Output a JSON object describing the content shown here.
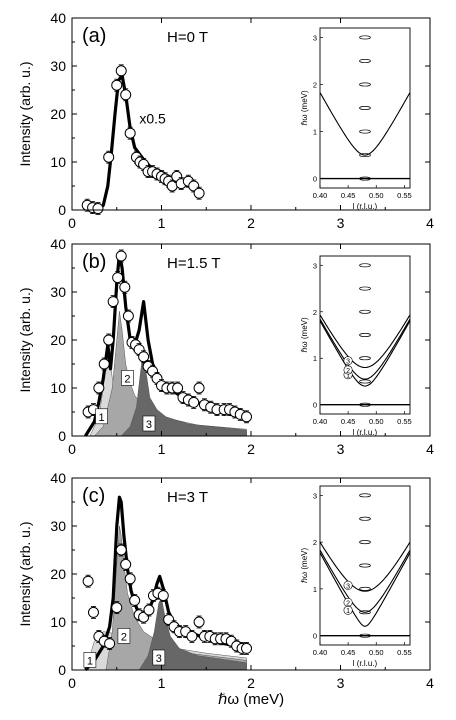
{
  "shared": {
    "xlabel": "ℏω (meV)",
    "ylabel": "Intensity (arb. u.)",
    "xlim": [
      0,
      4
    ],
    "ylim": [
      0,
      40
    ],
    "xticks": [
      0,
      1,
      2,
      3,
      4
    ],
    "yticks": [
      0,
      10,
      20,
      30,
      40
    ]
  },
  "chart_data": [
    {
      "type": "line",
      "panel": "(a)",
      "field": "H=0 T",
      "annotation": "x0.5",
      "points": {
        "x": [
          0.17,
          0.23,
          0.29,
          0.41,
          0.5,
          0.55,
          0.6,
          0.65,
          0.72,
          0.76,
          0.8,
          0.85,
          0.9,
          0.95,
          1.0,
          1.04,
          1.08,
          1.12,
          1.17,
          1.22,
          1.3,
          1.36,
          1.42
        ],
        "y": [
          1,
          0.5,
          0.3,
          11,
          26,
          29,
          24,
          16,
          11,
          10,
          9.5,
          8,
          8,
          7.5,
          7,
          6.5,
          6,
          5,
          7,
          5.5,
          6,
          5,
          3.5
        ]
      },
      "fit": {
        "x": [
          0.3,
          0.35,
          0.4,
          0.44,
          0.48,
          0.52,
          0.56,
          0.6,
          0.65,
          0.7,
          0.8,
          0.9,
          1.0,
          1.1,
          1.2,
          1.3,
          1.42
        ],
        "y": [
          0,
          1,
          5,
          12,
          20,
          27,
          28,
          24,
          17,
          13,
          10.5,
          8.5,
          7.4,
          6.5,
          5.7,
          5,
          3.8
        ]
      },
      "inset": {
        "xlabel": "l (r.l.u.)",
        "ylabel": "ℏω (meV)",
        "xlim": [
          0.4,
          0.56
        ],
        "ylim": [
          -0.2,
          3.2
        ],
        "xticks": [
          0.4,
          0.45,
          0.5,
          0.55
        ],
        "yticks": [
          0,
          1,
          2,
          3
        ],
        "center": 0.48,
        "gaps": [
          0.5
        ],
        "branch_labels": [],
        "ellipses_y": [
          0,
          0.5,
          1.0,
          1.5,
          2.0,
          2.5,
          3.0
        ]
      }
    },
    {
      "type": "line",
      "panel": "(b)",
      "field": "H=1.5 T",
      "points": {
        "x": [
          0.18,
          0.24,
          0.3,
          0.36,
          0.41,
          0.46,
          0.51,
          0.55,
          0.59,
          0.63,
          0.67,
          0.71,
          0.75,
          0.8,
          0.85,
          0.9,
          0.95,
          1.0,
          1.06,
          1.12,
          1.18,
          1.24,
          1.3,
          1.36,
          1.42,
          1.48,
          1.55,
          1.62,
          1.7,
          1.76,
          1.82,
          1.88,
          1.95
        ],
        "y": [
          5,
          5.5,
          10,
          15,
          20,
          28,
          33,
          37.5,
          31,
          25,
          19.5,
          19,
          18,
          16.5,
          14.5,
          13.5,
          12,
          10.5,
          10,
          10,
          10,
          8,
          7.5,
          7,
          10,
          6.5,
          6,
          5.5,
          5.5,
          5.5,
          5,
          4.5,
          4
        ]
      },
      "fit": {
        "x": [
          0.15,
          0.25,
          0.3,
          0.35,
          0.4,
          0.43,
          0.46,
          0.5,
          0.53,
          0.56,
          0.6,
          0.65,
          0.7,
          0.75,
          0.8,
          0.85,
          0.9,
          1.0,
          1.2,
          1.4,
          1.6,
          1.8,
          1.95
        ],
        "y": [
          0,
          3,
          7,
          12,
          19,
          14,
          20,
          32,
          38,
          35,
          27,
          20,
          19,
          22,
          28,
          20,
          15,
          11,
          8.5,
          7,
          5.5,
          4.5,
          3.8
        ]
      },
      "components": [
        {
          "name": "1",
          "x": [
            0.2,
            0.3,
            0.35,
            0.38,
            0.4,
            0.42,
            0.45,
            0.5,
            0.6,
            0.8,
            1.0,
            1.5,
            1.95
          ],
          "y": [
            0,
            4,
            10,
            16,
            19,
            17,
            12,
            8,
            5.5,
            3.5,
            2.5,
            1.2,
            0.8
          ]
        },
        {
          "name": "2",
          "x": [
            0.25,
            0.35,
            0.45,
            0.5,
            0.53,
            0.56,
            0.6,
            0.65,
            0.7,
            0.8,
            1.0,
            1.4,
            1.95
          ],
          "y": [
            0,
            2,
            10,
            20,
            26,
            22,
            15,
            11,
            8.5,
            6,
            4,
            2.3,
            1.4
          ]
        },
        {
          "name": "3",
          "x": [
            0.55,
            0.65,
            0.72,
            0.77,
            0.8,
            0.83,
            0.87,
            0.95,
            1.05,
            1.3,
            1.95
          ],
          "y": [
            0,
            2,
            6,
            14,
            18,
            13,
            8,
            5.5,
            4,
            2.5,
            1.2
          ]
        }
      ],
      "inset": {
        "xlabel": "l (r.l.u.)",
        "ylabel": "ℏω (meV)",
        "xlim": [
          0.4,
          0.56
        ],
        "ylim": [
          -0.2,
          3.2
        ],
        "xticks": [
          0.4,
          0.45,
          0.5,
          0.55
        ],
        "yticks": [
          0,
          1,
          2,
          3
        ],
        "center": 0.48,
        "gaps": [
          0.4,
          0.55,
          0.8
        ],
        "branch_labels": [
          "1",
          "2",
          "3"
        ],
        "ellipses_y": [
          0,
          0.5,
          1.0,
          1.5,
          2.0,
          2.5,
          3.0
        ]
      }
    },
    {
      "type": "line",
      "panel": "(c)",
      "field": "H=3 T",
      "points": {
        "x": [
          0.18,
          0.24,
          0.3,
          0.36,
          0.42,
          0.5,
          0.55,
          0.6,
          0.65,
          0.7,
          0.75,
          0.8,
          0.86,
          0.91,
          0.96,
          1.02,
          1.08,
          1.14,
          1.2,
          1.27,
          1.34,
          1.42,
          1.48,
          1.54,
          1.6,
          1.66,
          1.72,
          1.78,
          1.84,
          1.9,
          1.95
        ],
        "y": [
          18.5,
          12,
          7,
          6,
          5.5,
          13,
          25,
          22,
          19,
          14.5,
          11.5,
          11,
          12.5,
          15.5,
          16,
          15.5,
          10.5,
          9,
          8,
          8,
          7,
          10,
          7,
          7,
          6.5,
          6.5,
          6.5,
          6,
          5,
          4.5,
          4.5
        ]
      },
      "fit": {
        "x": [
          0.15,
          0.25,
          0.35,
          0.42,
          0.46,
          0.5,
          0.53,
          0.55,
          0.58,
          0.62,
          0.66,
          0.7,
          0.75,
          0.8,
          0.85,
          0.9,
          0.95,
          0.98,
          1.02,
          1.08,
          1.15,
          1.3,
          1.5,
          1.7,
          1.95
        ],
        "y": [
          0,
          2,
          5,
          9,
          15,
          30,
          36,
          35,
          28,
          21,
          16.5,
          14,
          11.5,
          11,
          12,
          14.5,
          18,
          19.5,
          17,
          12,
          9.5,
          8,
          6.5,
          5.5,
          4.5
        ]
      },
      "components": [
        {
          "name": "1",
          "x": [
            0.15,
            0.25,
            0.35,
            0.5,
            0.7,
            1.0,
            1.5,
            1.95
          ],
          "y": [
            0,
            6,
            8,
            7.5,
            6.5,
            5,
            3.5,
            2.5
          ]
        },
        {
          "name": "2",
          "x": [
            0.38,
            0.45,
            0.5,
            0.53,
            0.55,
            0.58,
            0.62,
            0.7,
            0.8,
            1.0,
            1.3,
            1.95
          ],
          "y": [
            0,
            8,
            22,
            30,
            28,
            22,
            16,
            11,
            8,
            5.5,
            3.5,
            2
          ]
        },
        {
          "name": "3",
          "x": [
            0.75,
            0.85,
            0.92,
            0.97,
            1.0,
            1.04,
            1.1,
            1.2,
            1.4,
            1.95
          ],
          "y": [
            0,
            3,
            8,
            14,
            15,
            11,
            7,
            4.5,
            3,
            1.5
          ]
        }
      ],
      "inset": {
        "xlabel": "l (r.l.u.)",
        "ylabel": "ℏω (meV)",
        "xlim": [
          0.4,
          0.56
        ],
        "ylim": [
          -0.2,
          3.2
        ],
        "xticks": [
          0.4,
          0.45,
          0.5,
          0.55
        ],
        "yticks": [
          0,
          1,
          2,
          3
        ],
        "center": 0.48,
        "gaps": [
          0.2,
          0.5,
          0.95
        ],
        "branch_labels": [
          "1",
          "2",
          "3"
        ],
        "ellipses_y": [
          0,
          0.5,
          1.0,
          1.5,
          2.0,
          2.5,
          3.0
        ]
      }
    }
  ]
}
